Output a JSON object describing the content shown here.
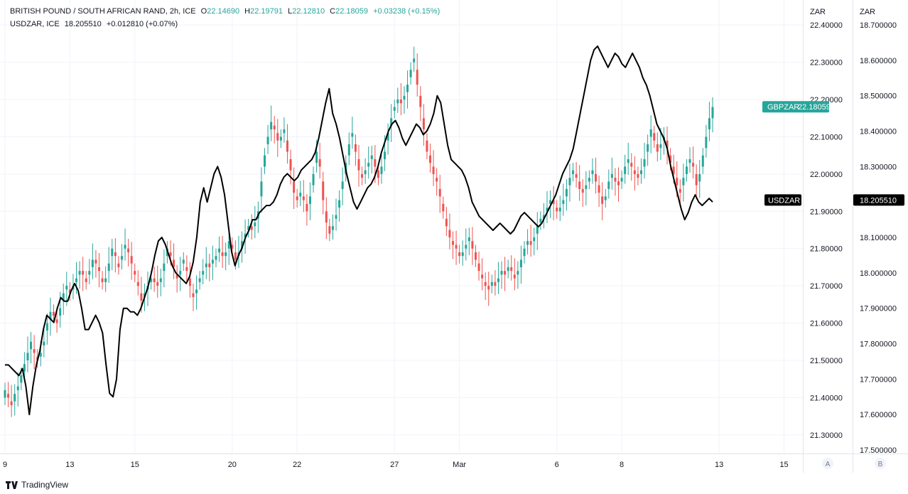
{
  "legend": {
    "line1": {
      "name": "BRITISH POUND / SOUTH AFRICAN RAND, 2h, ICE",
      "o_key": "O",
      "o_val": "22.14690",
      "h_key": "H",
      "h_val": "22.19791",
      "l_key": "L",
      "l_val": "22.12810",
      "c_key": "C",
      "c_val": "22.18059",
      "change": "+0.03238 (+0.15%)"
    },
    "line2": {
      "name": "USDZAR, ICE",
      "value": "18.205510",
      "change": "+0.012810 (+0.07%)"
    }
  },
  "brand": "TradingView",
  "colors": {
    "up": "#26a69a",
    "down": "#ef5350",
    "line": "#000000",
    "grid": "#f0f3fa",
    "gbp_label_bg": "#26a69a",
    "usd_label_bg": "#000000"
  },
  "chart_data": {
    "type": "line",
    "title": "BRITISH POUND / SOUTH AFRICAN RAND, 2h, ICE",
    "x_ticks": [
      "9",
      "13",
      "15",
      "20",
      "22",
      "27",
      "Mar",
      "6",
      "8",
      "13",
      "15"
    ],
    "x_tick_index": [
      0,
      20,
      40,
      70,
      90,
      120,
      140,
      170,
      190,
      220,
      240
    ],
    "scale_a": {
      "unit": "ZAR",
      "button": "A",
      "ticks": [
        "22.40000",
        "22.30000",
        "22.20000",
        "22.10000",
        "22.00000",
        "21.90000",
        "21.80000",
        "21.70000",
        "21.60000",
        "21.50000",
        "21.40000",
        "21.30000"
      ],
      "ylim": [
        21.25,
        22.41
      ]
    },
    "scale_b": {
      "unit": "ZAR",
      "button": "B",
      "ticks": [
        "18.700000",
        "18.600000",
        "18.500000",
        "18.400000",
        "18.300000",
        "18.200000",
        "18.100000",
        "18.000000",
        "17.900000",
        "17.800000",
        "17.700000",
        "17.600000",
        "17.500000"
      ],
      "ylim": [
        17.49,
        18.71
      ]
    },
    "series": [
      {
        "name": "GBPZAR",
        "kind": "candlestick",
        "axis": "A",
        "last_label": "GBPZAR",
        "last_value": "22.18059",
        "close": [
          21.42,
          21.4,
          21.38,
          21.41,
          21.43,
          21.46,
          21.49,
          21.52,
          21.55,
          21.52,
          21.5,
          21.52,
          21.55,
          21.6,
          21.63,
          21.62,
          21.6,
          21.64,
          21.68,
          21.7,
          21.68,
          21.7,
          21.72,
          21.74,
          21.73,
          21.71,
          21.74,
          21.77,
          21.76,
          21.74,
          21.71,
          21.72,
          21.76,
          21.8,
          21.78,
          21.75,
          21.78,
          21.81,
          21.79,
          21.76,
          21.73,
          21.7,
          21.66,
          21.68,
          21.7,
          21.72,
          21.71,
          21.7,
          21.72,
          21.76,
          21.8,
          21.78,
          21.75,
          21.72,
          21.74,
          21.77,
          21.74,
          21.7,
          21.67,
          21.69,
          21.72,
          21.74,
          21.76,
          21.75,
          21.77,
          21.78,
          21.8,
          21.78,
          21.79,
          21.82,
          21.8,
          21.77,
          21.79,
          21.82,
          21.84,
          21.86,
          21.85,
          21.87,
          21.9,
          21.98,
          22.05,
          22.1,
          22.14,
          22.12,
          22.09,
          22.1,
          22.12,
          22.06,
          22.01,
          21.95,
          21.93,
          21.95,
          21.93,
          21.9,
          21.94,
          22.0,
          22.06,
          22.02,
          21.93,
          21.87,
          21.84,
          21.86,
          21.89,
          21.93,
          21.98,
          22.03,
          22.08,
          22.11,
          22.06,
          22.01,
          21.99,
          22.01,
          22.03,
          22.05,
          22.02,
          21.99,
          22.02,
          22.06,
          22.11,
          22.15,
          22.18,
          22.2,
          22.19,
          22.21,
          22.24,
          22.28,
          22.31,
          22.24,
          22.18,
          22.12,
          22.06,
          22.03,
          22.0,
          21.98,
          21.94,
          21.9,
          21.86,
          21.83,
          21.81,
          21.8,
          21.78,
          21.79,
          21.81,
          21.83,
          21.8,
          21.77,
          21.74,
          21.72,
          21.7,
          21.69,
          21.71,
          21.7,
          21.72,
          21.74,
          21.73,
          21.75,
          21.74,
          21.72,
          21.74,
          21.77,
          21.8,
          21.82,
          21.81,
          21.83,
          21.86,
          21.88,
          21.89,
          21.91,
          21.93,
          21.92,
          21.9,
          21.91,
          21.93,
          21.96,
          21.99,
          22.01,
          21.99,
          21.96,
          21.95,
          21.97,
          21.99,
          22.01,
          21.98,
          21.95,
          21.92,
          21.94,
          21.98,
          22.0,
          21.98,
          21.97,
          21.99,
          22.02,
          22.04,
          22.02,
          22.0,
          21.99,
          22.01,
          22.04,
          22.08,
          22.12,
          22.09,
          22.06,
          22.08,
          22.1,
          22.07,
          22.03,
          22.0,
          21.97,
          21.95,
          21.99,
          22.02,
          22.04,
          22.02,
          21.97,
          22.0,
          22.05,
          22.1,
          22.15,
          22.18
        ],
        "open": [
          21.4,
          21.41,
          21.39,
          21.39,
          21.42,
          21.44,
          21.47,
          21.5,
          21.53,
          21.53,
          21.51,
          21.51,
          21.54,
          21.58,
          21.61,
          21.63,
          21.61,
          21.62,
          21.66,
          21.69,
          21.69,
          21.69,
          21.71,
          21.73,
          21.74,
          21.72,
          21.73,
          21.75,
          21.77,
          21.75,
          21.72,
          21.71,
          21.74,
          21.78,
          21.79,
          21.76,
          21.77,
          21.8,
          21.8,
          21.78,
          21.74,
          21.71,
          21.68,
          21.67,
          21.69,
          21.71,
          21.72,
          21.71,
          21.71,
          21.74,
          21.78,
          21.79,
          21.77,
          21.73,
          21.73,
          21.76,
          21.75,
          21.72,
          21.68,
          21.68,
          21.71,
          21.73,
          21.75,
          21.76,
          21.76,
          21.77,
          21.79,
          21.79,
          21.78,
          21.8,
          21.81,
          21.79,
          21.78,
          21.8,
          21.83,
          21.85,
          21.86,
          21.86,
          21.88,
          21.94,
          22.02,
          22.08,
          22.12,
          22.13,
          22.11,
          22.09,
          22.11,
          22.09,
          22.04,
          21.98,
          21.94,
          21.94,
          21.94,
          21.92,
          21.92,
          21.97,
          22.03,
          22.04,
          21.98,
          21.9,
          21.86,
          21.85,
          21.88,
          21.91,
          21.96,
          22.0,
          22.05,
          22.1,
          22.08,
          22.04,
          22.0,
          22.0,
          22.02,
          22.04,
          22.04,
          22.01,
          22.0,
          22.04,
          22.09,
          22.13,
          22.17,
          22.19,
          22.2,
          22.2,
          22.22,
          22.26,
          22.3,
          22.28,
          22.21,
          22.15,
          22.09,
          22.05,
          22.02,
          21.99,
          21.96,
          21.92,
          21.88,
          21.85,
          21.82,
          21.81,
          21.79,
          21.78,
          21.8,
          21.82,
          21.82,
          21.79,
          21.76,
          21.73,
          21.71,
          21.7,
          21.7,
          21.71,
          21.71,
          21.73,
          21.74,
          21.74,
          21.75,
          21.73,
          21.73,
          21.75,
          21.78,
          21.81,
          21.82,
          21.82,
          21.84,
          21.87,
          21.88,
          21.9,
          21.92,
          21.93,
          21.91,
          21.9,
          21.92,
          21.94,
          21.97,
          22.0,
          22.0,
          21.98,
          21.96,
          21.96,
          21.98,
          22.0,
          22.0,
          21.97,
          21.94,
          21.93,
          21.96,
          21.99,
          21.99,
          21.98,
          21.98,
          22.0,
          22.03,
          22.03,
          22.01,
          22.0,
          22.0,
          22.02,
          22.06,
          22.1,
          22.11,
          22.08,
          22.07,
          22.09,
          22.09,
          22.05,
          22.02,
          21.99,
          21.96,
          21.97,
          22.0,
          22.03,
          22.03,
          22.0,
          21.98,
          22.02,
          22.07,
          22.12,
          22.15
        ]
      },
      {
        "name": "USDZAR",
        "kind": "line",
        "axis": "B",
        "last_label": "USDZAR",
        "last_value": "18.205510",
        "values": [
          17.74,
          17.74,
          17.73,
          17.72,
          17.71,
          17.73,
          17.68,
          17.6,
          17.68,
          17.74,
          17.78,
          17.84,
          17.88,
          17.87,
          17.86,
          17.9,
          17.93,
          17.92,
          17.92,
          17.95,
          17.97,
          17.95,
          17.9,
          17.84,
          17.84,
          17.86,
          17.88,
          17.86,
          17.83,
          17.74,
          17.66,
          17.65,
          17.7,
          17.84,
          17.9,
          17.9,
          17.89,
          17.89,
          17.88,
          17.9,
          17.93,
          17.96,
          18.0,
          18.05,
          18.09,
          18.1,
          18.08,
          18.05,
          18.02,
          18.0,
          17.99,
          17.98,
          17.97,
          17.99,
          18.03,
          18.1,
          18.2,
          18.24,
          18.2,
          18.24,
          18.28,
          18.3,
          18.27,
          18.22,
          18.14,
          18.06,
          18.02,
          18.05,
          18.07,
          18.1,
          18.12,
          18.15,
          18.15,
          18.17,
          18.18,
          18.19,
          18.19,
          18.2,
          18.22,
          18.25,
          18.27,
          18.28,
          18.27,
          18.26,
          18.27,
          18.29,
          18.3,
          18.31,
          18.32,
          18.34,
          18.38,
          18.43,
          18.48,
          18.52,
          18.45,
          18.42,
          18.38,
          18.33,
          18.28,
          18.24,
          18.2,
          18.18,
          18.2,
          18.22,
          18.24,
          18.25,
          18.27,
          18.3,
          18.34,
          18.37,
          18.4,
          18.42,
          18.43,
          18.41,
          18.38,
          18.36,
          18.38,
          18.4,
          18.42,
          18.41,
          18.39,
          18.4,
          18.42,
          18.45,
          18.5,
          18.48,
          18.42,
          18.36,
          18.32,
          18.31,
          18.3,
          18.29,
          18.27,
          18.24,
          18.2,
          18.18,
          18.16,
          18.15,
          18.14,
          18.13,
          18.12,
          18.13,
          18.14,
          18.13,
          18.12,
          18.11,
          18.12,
          18.14,
          18.16,
          18.17,
          18.16,
          18.15,
          18.14,
          18.13,
          18.14,
          18.16,
          18.18,
          18.2,
          18.22,
          18.25,
          18.28,
          18.3,
          18.32,
          18.35,
          18.4,
          18.45,
          18.5,
          18.55,
          18.6,
          18.63,
          18.64,
          18.62,
          18.6,
          18.58,
          18.6,
          18.62,
          18.61,
          18.59,
          18.58,
          18.6,
          18.62,
          18.6,
          18.58,
          18.55,
          18.53,
          18.5,
          18.46,
          18.42,
          18.4,
          18.38,
          18.35,
          18.3,
          18.26,
          18.22,
          18.18,
          18.15,
          18.17,
          18.2,
          18.22,
          18.2,
          18.19,
          18.2,
          18.21,
          18.2
        ]
      }
    ],
    "grid": true
  }
}
